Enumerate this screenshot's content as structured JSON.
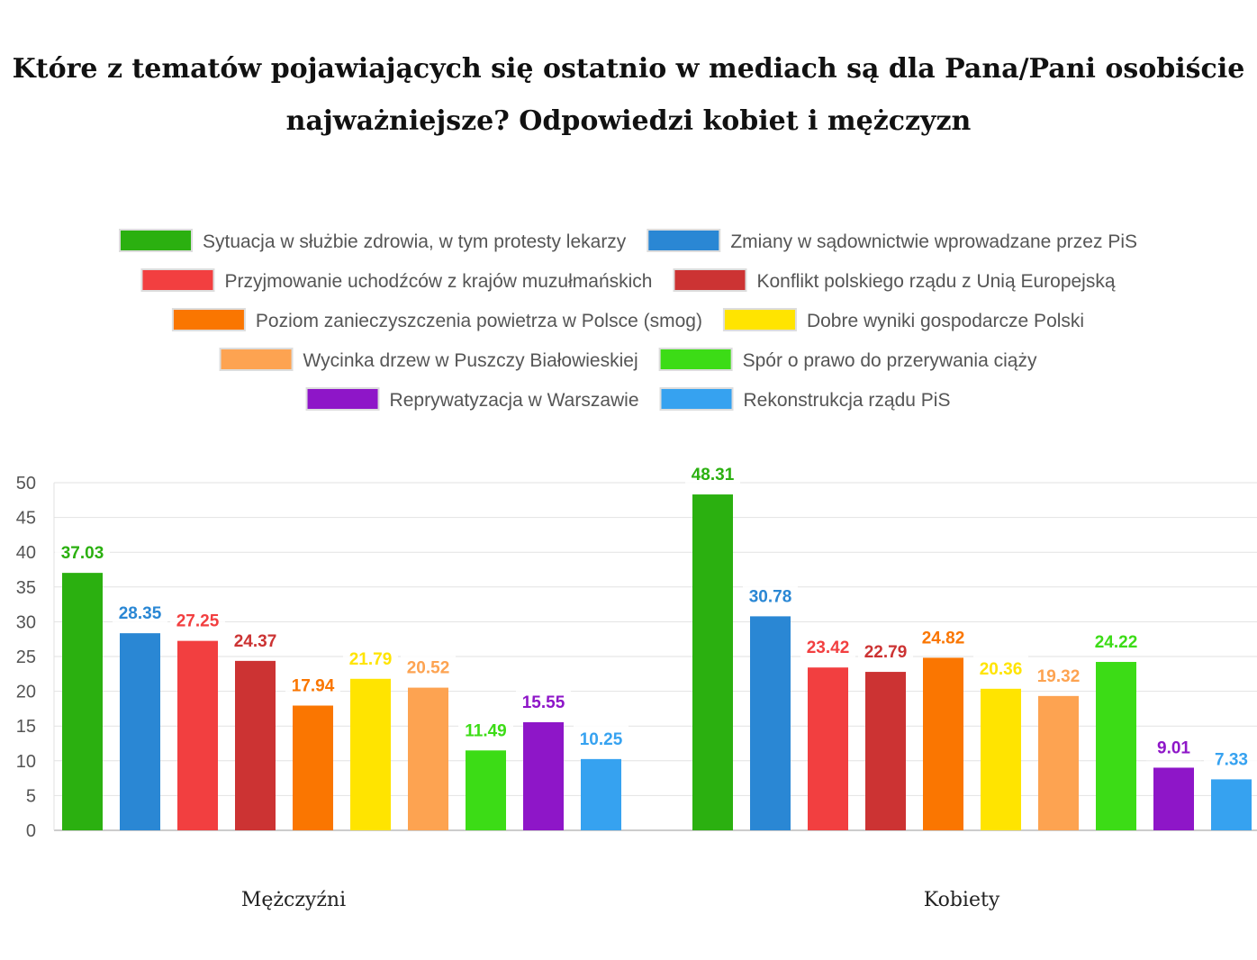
{
  "chart_data": {
    "type": "bar",
    "title": "Które z tematów pojawiających się ostatnio w mediach są dla Pana/Pani osobiście najważniejsze? Odpowiedzi kobiet i mężczyzn",
    "categories": [
      "Mężczyźni",
      "Kobiety"
    ],
    "xlabel": "",
    "ylabel": "",
    "ylim": [
      0,
      50
    ],
    "yticks": [
      0,
      5,
      10,
      15,
      20,
      25,
      30,
      35,
      40,
      45,
      50
    ],
    "grid": true,
    "legend_position": "top",
    "series": [
      {
        "name": "Sytuacja w służbie zdrowia, w tym protesty lekarzy",
        "color": "#2bb010",
        "values": [
          37.03,
          48.31
        ]
      },
      {
        "name": "Zmiany w sądownictwie wprowadzane przez PiS",
        "color": "#2a87d4",
        "values": [
          28.35,
          30.78
        ]
      },
      {
        "name": "Przyjmowanie uchodźców z krajów muzułmańskich",
        "color": "#f23f40",
        "values": [
          27.25,
          23.42
        ]
      },
      {
        "name": "Konflikt polskiego rządu z Unią Europejską",
        "color": "#cc3333",
        "values": [
          24.37,
          22.79
        ]
      },
      {
        "name": "Poziom zanieczyszczenia powietrza w Polsce (smog)",
        "color": "#fa7601",
        "values": [
          17.94,
          24.82
        ]
      },
      {
        "name": "Dobre wyniki gospodarcze Polski",
        "color": "#ffe400",
        "values": [
          21.79,
          20.36
        ]
      },
      {
        "name": "Wycinka drzew w Puszczy Białowieskiej",
        "color": "#fda351",
        "values": [
          20.52,
          19.32
        ]
      },
      {
        "name": "Spór o prawo do przerywania ciąży",
        "color": "#3cdc16",
        "values": [
          11.49,
          24.22
        ]
      },
      {
        "name": "Reprywatyzacja w Warszawie",
        "color": "#8e16c8",
        "values": [
          15.55,
          9.01
        ]
      },
      {
        "name": "Rekonstrukcja rządu PiS",
        "color": "#36a2f0",
        "values": [
          10.25,
          7.33
        ]
      }
    ]
  }
}
